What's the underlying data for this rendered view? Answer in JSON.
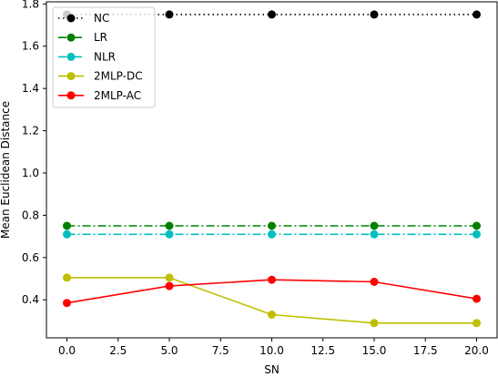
{
  "chart_data": {
    "type": "line",
    "title": "",
    "xlabel": "SN",
    "ylabel": "Mean Euclidean Distance",
    "x": [
      0,
      5,
      10,
      15,
      20
    ],
    "xlim": [
      -1,
      21
    ],
    "ylim": [
      0.22,
      1.81
    ],
    "xticks": [
      0.0,
      2.5,
      5.0,
      7.5,
      10.0,
      12.5,
      15.0,
      17.5,
      20.0
    ],
    "xtick_labels": [
      "0.0",
      "2.5",
      "5.0",
      "7.5",
      "10.0",
      "12.5",
      "15.0",
      "17.5",
      "20.0"
    ],
    "yticks": [
      0.4,
      0.6,
      0.8,
      1.0,
      1.2,
      1.4,
      1.6,
      1.8
    ],
    "ytick_labels": [
      "0.4",
      "0.6",
      "0.8",
      "1.0",
      "1.2",
      "1.4",
      "1.6",
      "1.8"
    ],
    "grid": false,
    "legend_position": "top-left",
    "series": [
      {
        "name": "NC",
        "values": [
          1.75,
          1.75,
          1.75,
          1.75,
          1.75
        ],
        "color": "#000000",
        "dash": "dotted"
      },
      {
        "name": "LR",
        "values": [
          0.75,
          0.75,
          0.75,
          0.75,
          0.75
        ],
        "color": "#008000",
        "dash": "dashdot"
      },
      {
        "name": "NLR",
        "values": [
          0.71,
          0.71,
          0.71,
          0.71,
          0.71
        ],
        "color": "#00bfbf",
        "dash": "dashdot"
      },
      {
        "name": "2MLP-DC",
        "values": [
          0.505,
          0.505,
          0.33,
          0.29,
          0.29
        ],
        "color": "#bfbf00",
        "dash": "solid"
      },
      {
        "name": "2MLP-AC",
        "values": [
          0.385,
          0.465,
          0.495,
          0.485,
          0.405
        ],
        "color": "#ff0000",
        "dash": "solid"
      }
    ]
  }
}
